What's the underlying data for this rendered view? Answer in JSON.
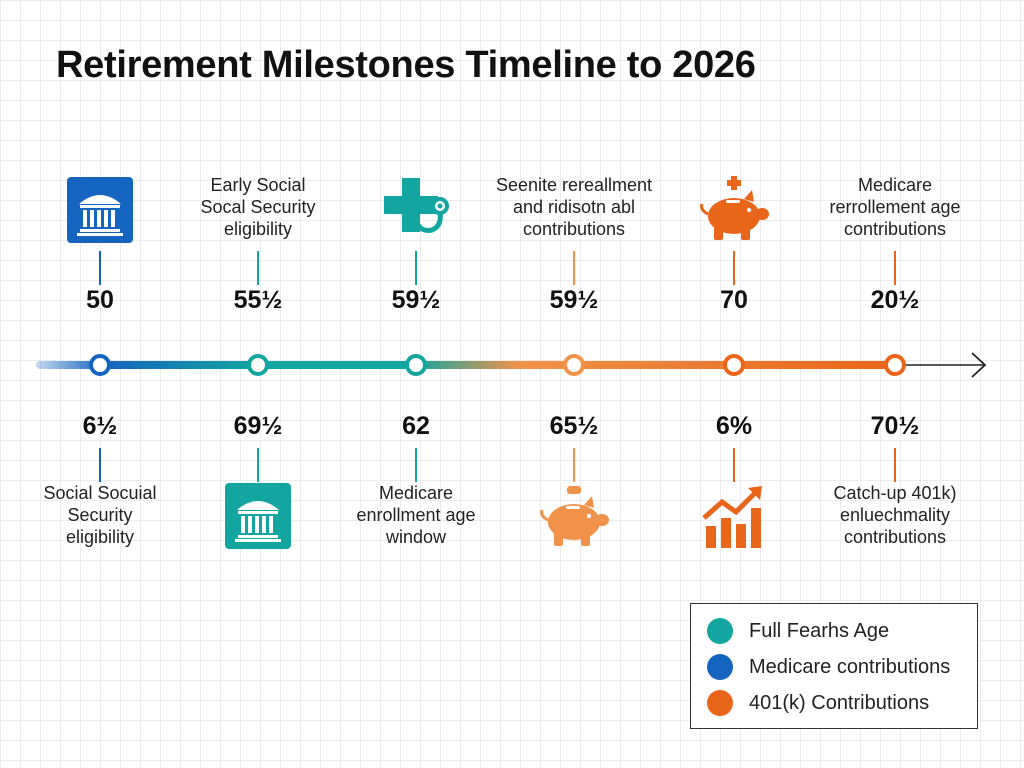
{
  "title": "Retirement Milestones Timeline to 2026",
  "colors": {
    "blue": "#1565c0",
    "teal": "#13a6a0",
    "orange": "#e8651a",
    "dark": "#222222"
  },
  "milestones": [
    {
      "top_value": "50",
      "bottom_value": "6½",
      "top_icon": "bank-icon",
      "top_text": [],
      "bottom_icon": null,
      "bottom_text": [
        "Social Socuial",
        "Security",
        "eligibility"
      ],
      "color": "#1565c0"
    },
    {
      "top_value": "55½",
      "bottom_value": "69½",
      "top_icon": null,
      "top_text": [
        "Early Social",
        "Socal Security",
        "eligibility"
      ],
      "bottom_icon": "bank-icon",
      "bottom_text": [],
      "color": "#13a6a0"
    },
    {
      "top_value": "59½",
      "bottom_value": "62",
      "top_icon": "medical-cross-stethoscope-icon",
      "top_text": [],
      "bottom_icon": null,
      "bottom_text": [
        "Medicare",
        "enrollment age",
        "window"
      ],
      "color": "#13a6a0"
    },
    {
      "top_value": "59½",
      "bottom_value": "65½",
      "top_icon": null,
      "top_text": [
        "Seenite rereallment",
        "and ridisotn abl",
        "contributions"
      ],
      "bottom_icon": "piggy-bank-icon",
      "bottom_text": [],
      "color": "#f0924a"
    },
    {
      "top_value": "70",
      "bottom_value": "6%",
      "top_icon": "piggy-bank-plus-icon",
      "top_text": [],
      "bottom_icon": "growth-chart-icon",
      "bottom_text": [],
      "color": "#e8651a"
    },
    {
      "top_value": "20½",
      "bottom_value": "70½",
      "top_icon": null,
      "top_text": [
        "Medicare",
        "rerrollement age",
        "contributions"
      ],
      "bottom_icon": null,
      "bottom_text": [
        "Catch-up 401k)",
        "enluechmality",
        "contributions"
      ],
      "color": "#e8651a"
    }
  ],
  "legend": [
    {
      "label": "Full Fearhs Age",
      "color": "#13a6a0"
    },
    {
      "label": "Medicare contributions",
      "color": "#1565c0"
    },
    {
      "label": "401(k) Contributions",
      "color": "#e8651a"
    }
  ]
}
